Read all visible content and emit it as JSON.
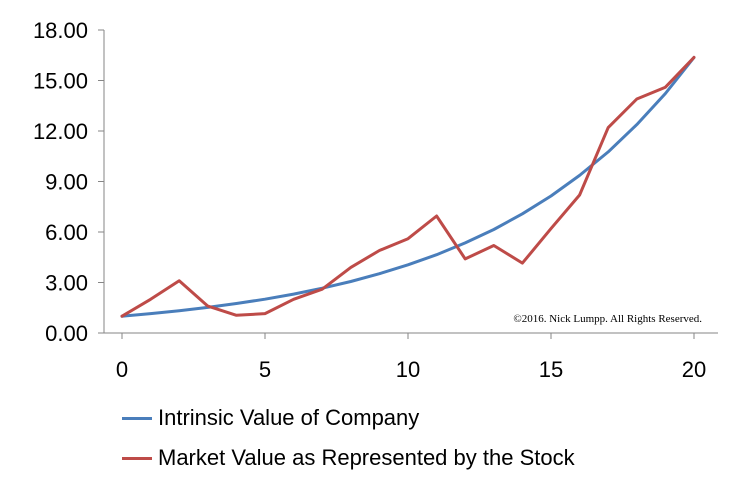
{
  "chart_data": {
    "type": "line",
    "x": [
      0,
      1,
      2,
      3,
      4,
      5,
      6,
      7,
      8,
      9,
      10,
      11,
      12,
      13,
      14,
      15,
      16,
      17,
      18,
      19,
      20
    ],
    "series": [
      {
        "name": "Intrinsic Value of Company",
        "color": "#4a7ebb",
        "values": [
          1.0,
          1.15,
          1.32,
          1.52,
          1.75,
          2.01,
          2.31,
          2.66,
          3.06,
          3.52,
          4.05,
          4.65,
          5.35,
          6.15,
          7.08,
          8.14,
          9.36,
          10.76,
          12.38,
          14.23,
          16.37
        ]
      },
      {
        "name": "Market Value as Represented by the Stock",
        "color": "#be4b48",
        "values": [
          1.0,
          2.0,
          3.1,
          1.6,
          1.05,
          1.15,
          2.0,
          2.6,
          3.9,
          4.9,
          5.6,
          6.95,
          4.4,
          5.2,
          4.15,
          6.2,
          8.2,
          12.2,
          13.9,
          14.6,
          16.37
        ]
      }
    ],
    "x_ticks": [
      "0",
      "5",
      "10",
      "15",
      "20"
    ],
    "x_tick_values": [
      0,
      5,
      10,
      15,
      20
    ],
    "y_ticks": [
      "0.00",
      "3.00",
      "6.00",
      "9.00",
      "12.00",
      "15.00",
      "18.00"
    ],
    "y_tick_values": [
      0,
      3,
      6,
      9,
      12,
      15,
      18
    ],
    "xlim": [
      0,
      20
    ],
    "ylim": [
      0,
      18
    ],
    "grid": false,
    "legend_position": "bottom-left",
    "annotation": "©2016. Nick Lumpp. All Rights Reserved."
  }
}
